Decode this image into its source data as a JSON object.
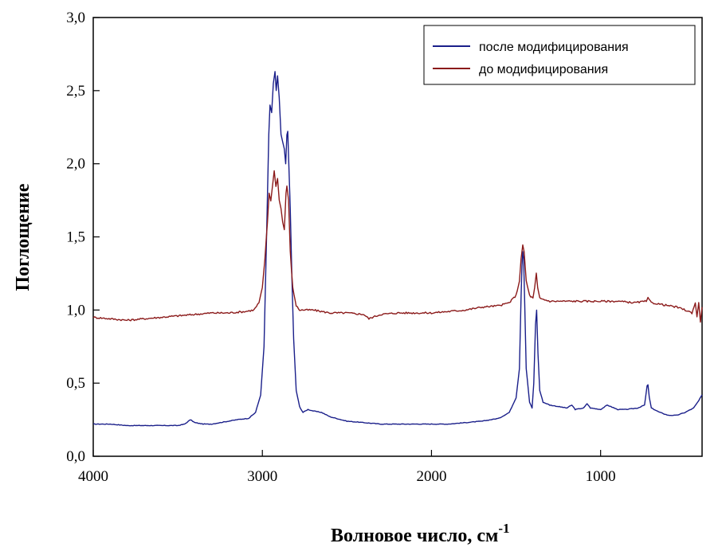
{
  "chart_data": {
    "type": "line",
    "xlabel": "Волновое число, см",
    "xlabel_superscript": "-1",
    "ylabel": "Поглощение",
    "xlim": [
      4000,
      400
    ],
    "ylim": [
      0,
      3
    ],
    "x_reversed": true,
    "x_ticks": [
      {
        "value": 4000,
        "label": "4000"
      },
      {
        "value": 3000,
        "label": "3000"
      },
      {
        "value": 2000,
        "label": "2000"
      },
      {
        "value": 1000,
        "label": "1000"
      }
    ],
    "y_ticks": [
      {
        "value": 0,
        "label": "0,0"
      },
      {
        "value": 0.5,
        "label": "0,5"
      },
      {
        "value": 1.0,
        "label": "1,0"
      },
      {
        "value": 1.5,
        "label": "1,5"
      },
      {
        "value": 2.0,
        "label": "2,0"
      },
      {
        "value": 2.5,
        "label": "2,5"
      },
      {
        "value": 3.0,
        "label": "3,0"
      }
    ],
    "grid": false,
    "legend_position": "top-right",
    "series": [
      {
        "name": "после модифицирования",
        "color": "#1a1f8a",
        "points": [
          [
            4000,
            0.22
          ],
          [
            3900,
            0.22
          ],
          [
            3800,
            0.21
          ],
          [
            3700,
            0.21
          ],
          [
            3600,
            0.21
          ],
          [
            3500,
            0.21
          ],
          [
            3460,
            0.22
          ],
          [
            3425,
            0.25
          ],
          [
            3400,
            0.23
          ],
          [
            3350,
            0.22
          ],
          [
            3300,
            0.22
          ],
          [
            3200,
            0.24
          ],
          [
            3150,
            0.25
          ],
          [
            3080,
            0.26
          ],
          [
            3040,
            0.3
          ],
          [
            3010,
            0.42
          ],
          [
            2990,
            0.75
          ],
          [
            2975,
            1.5
          ],
          [
            2962,
            2.2
          ],
          [
            2955,
            2.4
          ],
          [
            2945,
            2.35
          ],
          [
            2935,
            2.55
          ],
          [
            2925,
            2.63
          ],
          [
            2918,
            2.5
          ],
          [
            2910,
            2.6
          ],
          [
            2900,
            2.45
          ],
          [
            2890,
            2.2
          ],
          [
            2880,
            2.15
          ],
          [
            2870,
            2.1
          ],
          [
            2862,
            2.0
          ],
          [
            2855,
            2.2
          ],
          [
            2850,
            2.22
          ],
          [
            2845,
            2.05
          ],
          [
            2835,
            1.7
          ],
          [
            2825,
            1.2
          ],
          [
            2815,
            0.8
          ],
          [
            2800,
            0.45
          ],
          [
            2780,
            0.34
          ],
          [
            2760,
            0.3
          ],
          [
            2730,
            0.32
          ],
          [
            2700,
            0.31
          ],
          [
            2650,
            0.3
          ],
          [
            2600,
            0.27
          ],
          [
            2500,
            0.24
          ],
          [
            2400,
            0.23
          ],
          [
            2300,
            0.22
          ],
          [
            2200,
            0.22
          ],
          [
            2100,
            0.22
          ],
          [
            2000,
            0.22
          ],
          [
            1900,
            0.22
          ],
          [
            1800,
            0.23
          ],
          [
            1700,
            0.24
          ],
          [
            1600,
            0.26
          ],
          [
            1540,
            0.3
          ],
          [
            1500,
            0.4
          ],
          [
            1480,
            0.6
          ],
          [
            1470,
            1.1
          ],
          [
            1465,
            1.3
          ],
          [
            1460,
            1.4
          ],
          [
            1455,
            1.35
          ],
          [
            1450,
            1.1
          ],
          [
            1440,
            0.6
          ],
          [
            1420,
            0.37
          ],
          [
            1405,
            0.33
          ],
          [
            1395,
            0.5
          ],
          [
            1385,
            0.9
          ],
          [
            1378,
            1.0
          ],
          [
            1370,
            0.7
          ],
          [
            1360,
            0.45
          ],
          [
            1340,
            0.37
          ],
          [
            1300,
            0.35
          ],
          [
            1250,
            0.34
          ],
          [
            1200,
            0.33
          ],
          [
            1170,
            0.35
          ],
          [
            1150,
            0.32
          ],
          [
            1100,
            0.33
          ],
          [
            1080,
            0.36
          ],
          [
            1060,
            0.33
          ],
          [
            1000,
            0.32
          ],
          [
            960,
            0.35
          ],
          [
            940,
            0.34
          ],
          [
            900,
            0.32
          ],
          [
            850,
            0.32
          ],
          [
            780,
            0.33
          ],
          [
            740,
            0.35
          ],
          [
            725,
            0.48
          ],
          [
            720,
            0.49
          ],
          [
            712,
            0.4
          ],
          [
            700,
            0.33
          ],
          [
            650,
            0.3
          ],
          [
            600,
            0.28
          ],
          [
            550,
            0.28
          ],
          [
            500,
            0.3
          ],
          [
            450,
            0.33
          ],
          [
            420,
            0.38
          ],
          [
            400,
            0.42
          ]
        ]
      },
      {
        "name": "до модифицирования",
        "color": "#8b1a1a",
        "points": [
          [
            4000,
            0.95
          ],
          [
            3900,
            0.94
          ],
          [
            3800,
            0.93
          ],
          [
            3700,
            0.94
          ],
          [
            3600,
            0.95
          ],
          [
            3500,
            0.96
          ],
          [
            3400,
            0.97
          ],
          [
            3300,
            0.98
          ],
          [
            3200,
            0.98
          ],
          [
            3100,
            0.99
          ],
          [
            3050,
            1.0
          ],
          [
            3020,
            1.05
          ],
          [
            3000,
            1.15
          ],
          [
            2985,
            1.35
          ],
          [
            2970,
            1.6
          ],
          [
            2960,
            1.8
          ],
          [
            2950,
            1.75
          ],
          [
            2940,
            1.85
          ],
          [
            2930,
            1.95
          ],
          [
            2920,
            1.85
          ],
          [
            2910,
            1.9
          ],
          [
            2900,
            1.75
          ],
          [
            2890,
            1.7
          ],
          [
            2880,
            1.6
          ],
          [
            2870,
            1.55
          ],
          [
            2860,
            1.8
          ],
          [
            2855,
            1.85
          ],
          [
            2845,
            1.75
          ],
          [
            2835,
            1.4
          ],
          [
            2820,
            1.15
          ],
          [
            2800,
            1.03
          ],
          [
            2780,
            1.0
          ],
          [
            2700,
            1.0
          ],
          [
            2600,
            0.98
          ],
          [
            2500,
            0.98
          ],
          [
            2400,
            0.97
          ],
          [
            2370,
            0.94
          ],
          [
            2350,
            0.95
          ],
          [
            2300,
            0.97
          ],
          [
            2200,
            0.98
          ],
          [
            2100,
            0.98
          ],
          [
            2000,
            0.98
          ],
          [
            1900,
            0.99
          ],
          [
            1800,
            1.0
          ],
          [
            1700,
            1.02
          ],
          [
            1600,
            1.03
          ],
          [
            1540,
            1.05
          ],
          [
            1500,
            1.1
          ],
          [
            1480,
            1.2
          ],
          [
            1470,
            1.35
          ],
          [
            1460,
            1.44
          ],
          [
            1452,
            1.4
          ],
          [
            1440,
            1.2
          ],
          [
            1420,
            1.1
          ],
          [
            1400,
            1.08
          ],
          [
            1390,
            1.15
          ],
          [
            1380,
            1.25
          ],
          [
            1372,
            1.15
          ],
          [
            1360,
            1.08
          ],
          [
            1300,
            1.06
          ],
          [
            1200,
            1.06
          ],
          [
            1100,
            1.06
          ],
          [
            1000,
            1.06
          ],
          [
            900,
            1.06
          ],
          [
            800,
            1.05
          ],
          [
            730,
            1.06
          ],
          [
            720,
            1.08
          ],
          [
            700,
            1.05
          ],
          [
            650,
            1.04
          ],
          [
            600,
            1.03
          ],
          [
            550,
            1.02
          ],
          [
            500,
            1.0
          ],
          [
            460,
            0.98
          ],
          [
            440,
            1.05
          ],
          [
            430,
            0.95
          ],
          [
            420,
            1.05
          ],
          [
            410,
            0.92
          ],
          [
            400,
            1.02
          ]
        ]
      }
    ]
  }
}
